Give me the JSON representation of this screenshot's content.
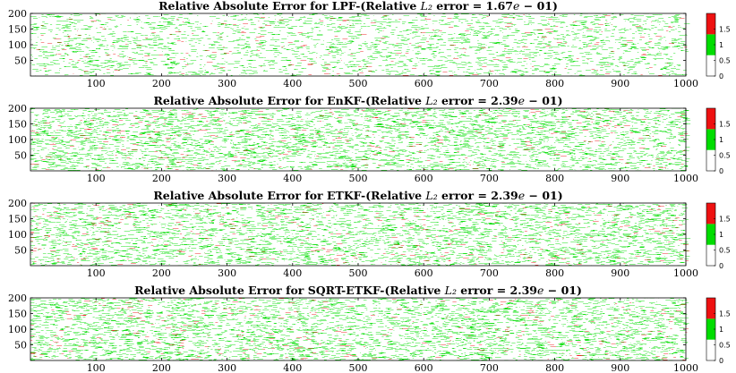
{
  "colors": {
    "background": "#ffffff",
    "green": "#00dd00",
    "red": "#ee1111",
    "axis": "#000000"
  },
  "chart_data": [
    {
      "type": "heatmap",
      "title_prefix": "Relative Absolute Error for LPF-(Relative ",
      "title_math": "L₂",
      "title_mid": " error = 1.67",
      "title_e": "e",
      "title_suffix": " − 01)",
      "xlim": [
        0,
        1000
      ],
      "ylim": [
        0,
        200
      ],
      "xticks": [
        100,
        200,
        300,
        400,
        500,
        600,
        700,
        800,
        900,
        1000
      ],
      "yticks": [
        50,
        100,
        150,
        200
      ],
      "colorbar": {
        "range": [
          0,
          2
        ],
        "ticks": [
          "0",
          "0.5",
          "1",
          "1.5"
        ],
        "bands": [
          {
            "from": 0,
            "to": 0.666,
            "color": "#ffffff"
          },
          {
            "from": 0.666,
            "to": 1.333,
            "color": "#00dd00"
          },
          {
            "from": 1.333,
            "to": 2,
            "color": "#ee1111"
          }
        ]
      },
      "green_fraction": 0.09,
      "red_fraction": 0.008
    },
    {
      "type": "heatmap",
      "title_prefix": "Relative Absolute Error for EnKF-(Relative ",
      "title_math": "L₂",
      "title_mid": " error = 2.39",
      "title_e": "e",
      "title_suffix": " − 01)",
      "xlim": [
        0,
        1000
      ],
      "ylim": [
        0,
        200
      ],
      "xticks": [
        100,
        200,
        300,
        400,
        500,
        600,
        700,
        800,
        900,
        1000
      ],
      "yticks": [
        50,
        100,
        150,
        200
      ],
      "colorbar": {
        "range": [
          0,
          2
        ],
        "ticks": [
          "0",
          "0.5",
          "1",
          "1.5"
        ],
        "bands": [
          {
            "from": 0,
            "to": 0.666,
            "color": "#ffffff"
          },
          {
            "from": 0.666,
            "to": 1.333,
            "color": "#00dd00"
          },
          {
            "from": 1.333,
            "to": 2,
            "color": "#ee1111"
          }
        ]
      },
      "green_fraction": 0.14,
      "red_fraction": 0.012
    },
    {
      "type": "heatmap",
      "title_prefix": "Relative Absolute Error for ETKF-(Relative ",
      "title_math": "L₂",
      "title_mid": " error = 2.39",
      "title_e": "e",
      "title_suffix": " − 01)",
      "xlim": [
        0,
        1000
      ],
      "ylim": [
        0,
        200
      ],
      "xticks": [
        100,
        200,
        300,
        400,
        500,
        600,
        700,
        800,
        900,
        1000
      ],
      "yticks": [
        50,
        100,
        150,
        200
      ],
      "colorbar": {
        "range": [
          0,
          2
        ],
        "ticks": [
          "0",
          "0.5",
          "1",
          "1.5"
        ],
        "bands": [
          {
            "from": 0,
            "to": 0.666,
            "color": "#ffffff"
          },
          {
            "from": 0.666,
            "to": 1.333,
            "color": "#00dd00"
          },
          {
            "from": 1.333,
            "to": 2,
            "color": "#ee1111"
          }
        ]
      },
      "green_fraction": 0.14,
      "red_fraction": 0.012
    },
    {
      "type": "heatmap",
      "title_prefix": "Relative Absolute Error for SQRT-ETKF-(Relative ",
      "title_math": "L₂",
      "title_mid": " error = 2.39",
      "title_e": "e",
      "title_suffix": " − 01)",
      "xlim": [
        0,
        1000
      ],
      "ylim": [
        0,
        200
      ],
      "xticks": [
        100,
        200,
        300,
        400,
        500,
        600,
        700,
        800,
        900,
        1000
      ],
      "yticks": [
        50,
        100,
        150,
        200
      ],
      "colorbar": {
        "range": [
          0,
          2
        ],
        "ticks": [
          "0",
          "0.5",
          "1",
          "1.5"
        ],
        "bands": [
          {
            "from": 0,
            "to": 0.666,
            "color": "#ffffff"
          },
          {
            "from": 0.666,
            "to": 1.333,
            "color": "#00dd00"
          },
          {
            "from": 1.333,
            "to": 2,
            "color": "#ee1111"
          }
        ]
      },
      "green_fraction": 0.14,
      "red_fraction": 0.012
    }
  ]
}
